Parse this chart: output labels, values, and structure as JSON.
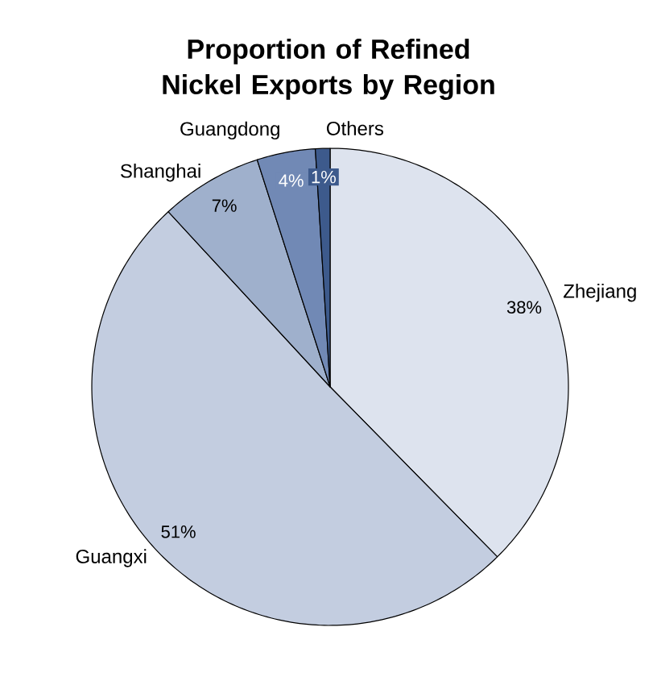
{
  "chart_data": {
    "type": "pie",
    "title": "Proportion of Refined Nickel Exports by Region",
    "categories": [
      "Zhejiang",
      "Guangxi",
      "Shanghai",
      "Guangdong",
      "Others"
    ],
    "values": [
      38,
      51,
      7,
      4,
      1
    ],
    "value_labels": [
      "38%",
      "51%",
      "7%",
      "4%",
      "1%"
    ],
    "colors": [
      "#dde3ee",
      "#c3cde0",
      "#9fb0cc",
      "#7189b5",
      "#3d5a8c"
    ]
  }
}
